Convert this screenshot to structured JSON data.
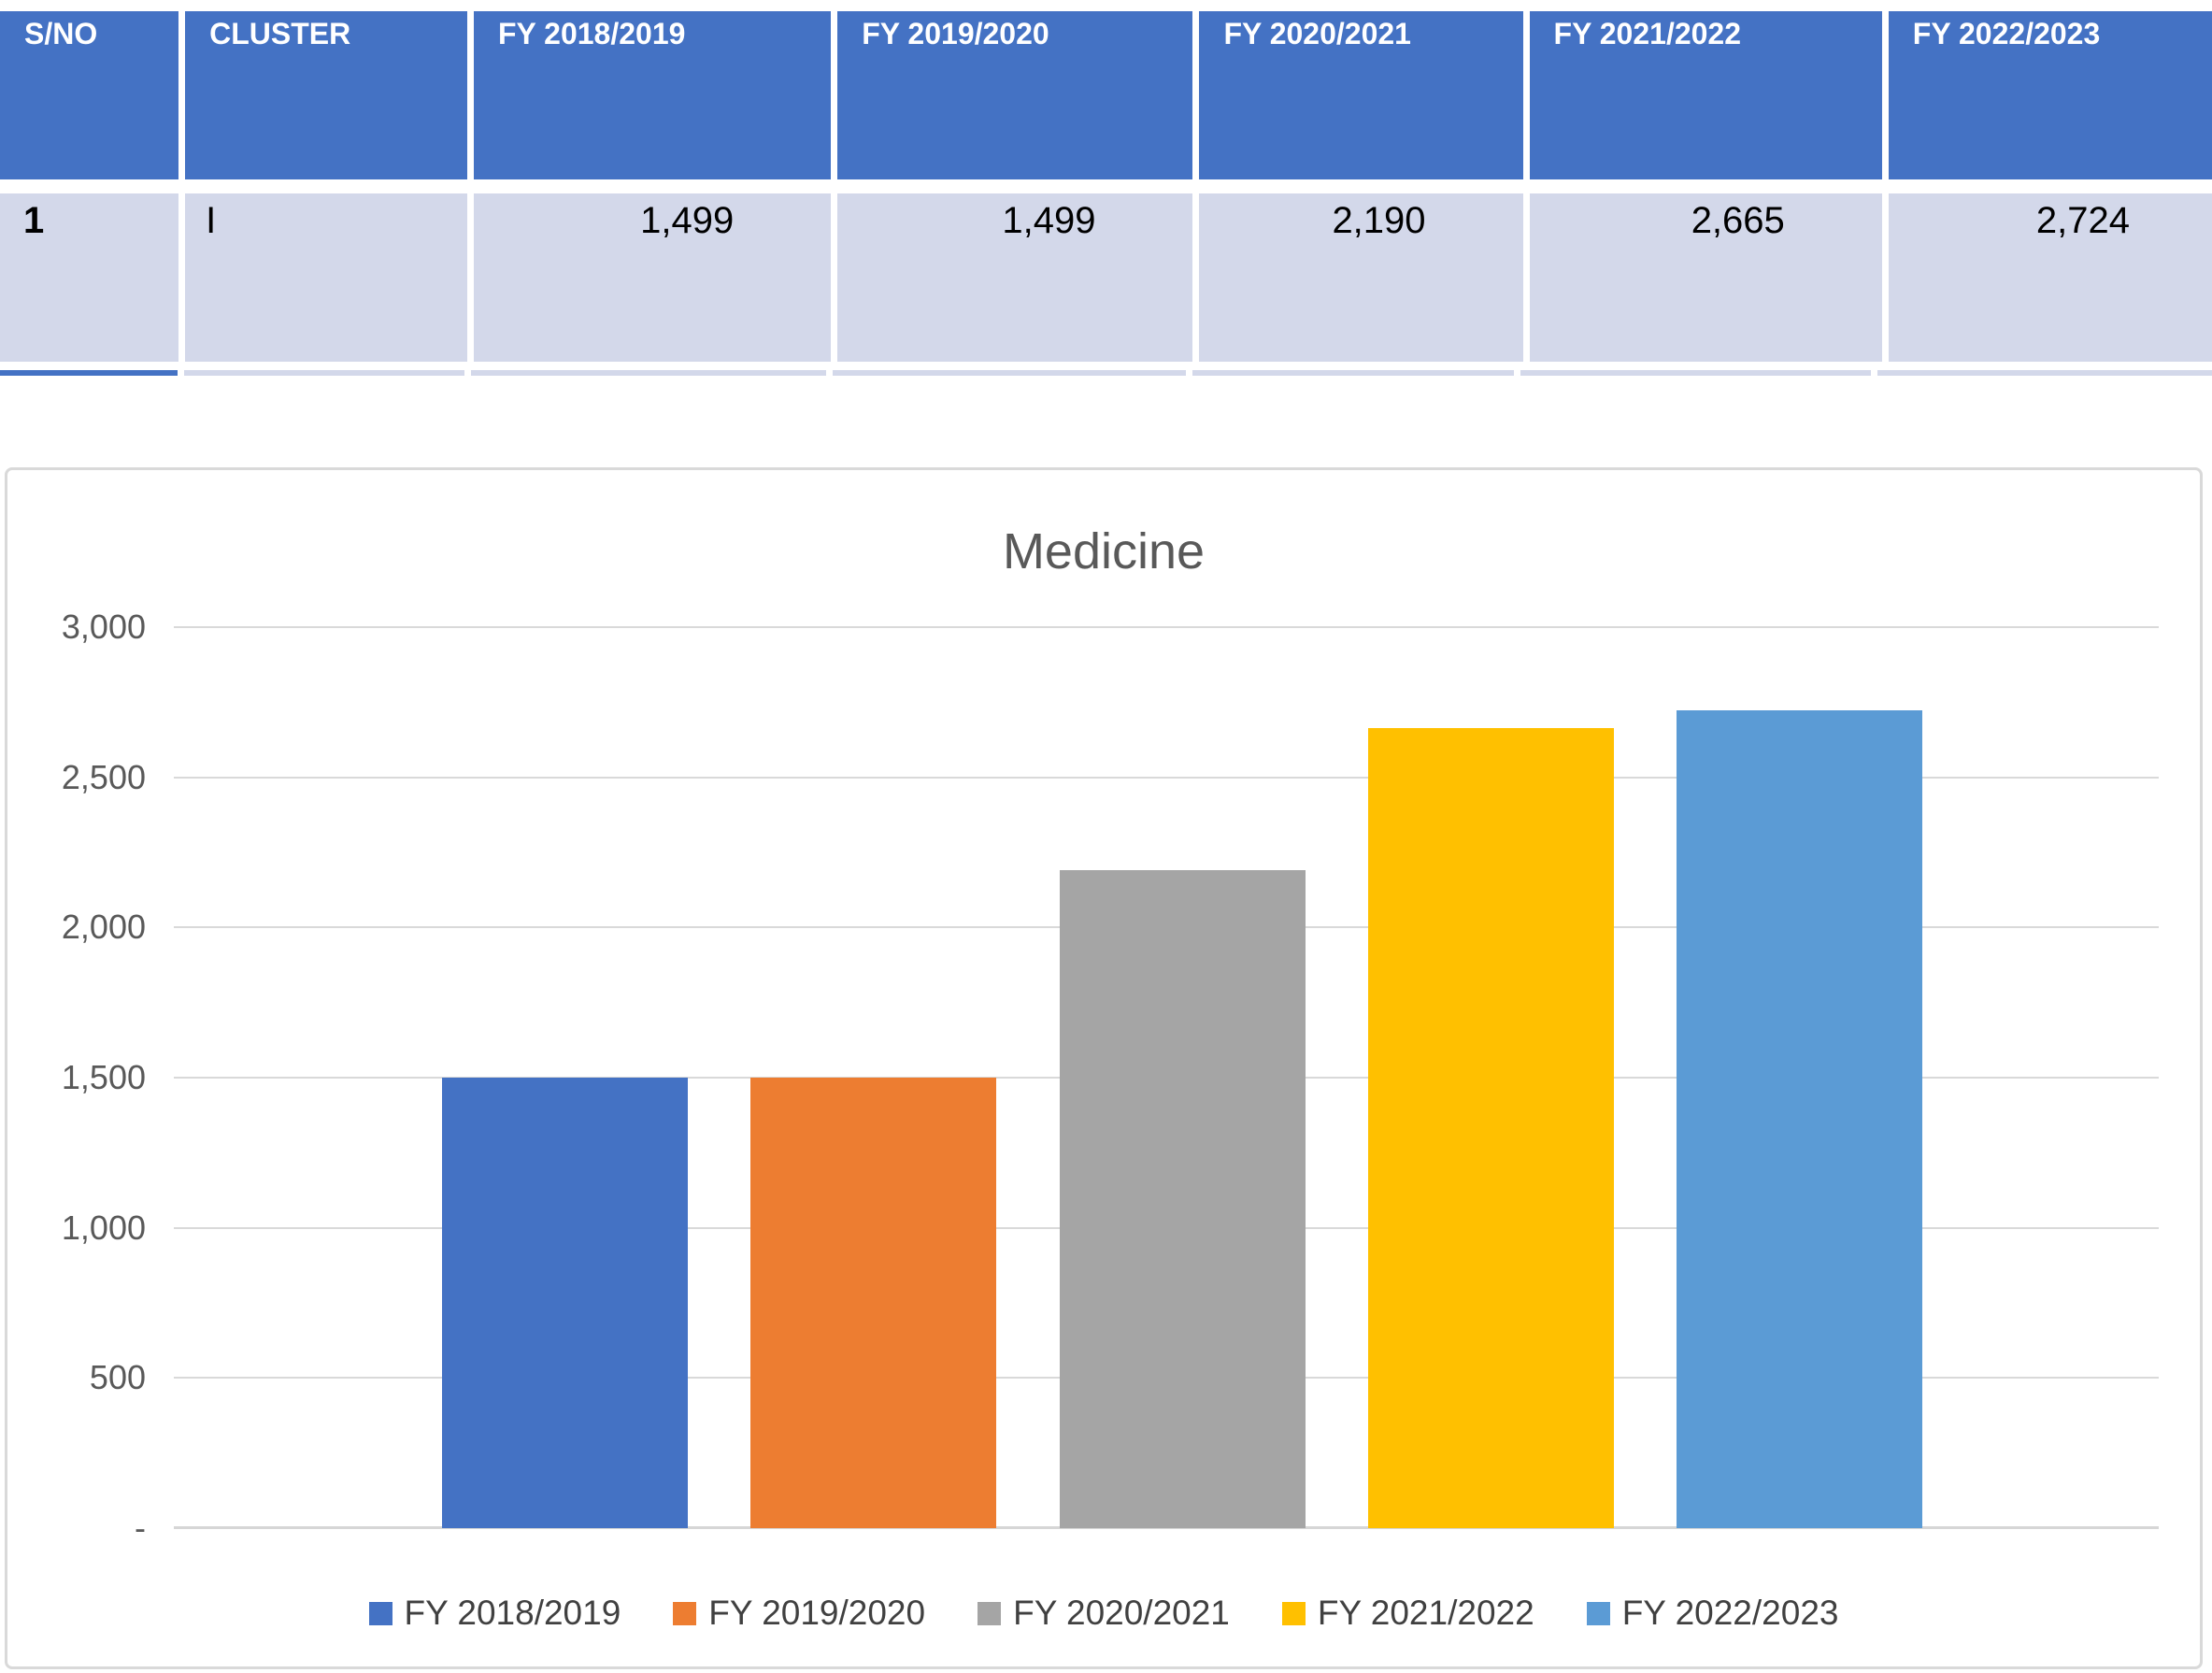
{
  "table": {
    "headers": [
      "S/NO",
      "CLUSTER",
      "FY 2018/2019",
      "FY 2019/2020",
      "FY 2020/2021",
      "FY 2021/2022",
      "FY 2022/2023"
    ],
    "rows": [
      {
        "sno": "1",
        "cluster": "I",
        "values": [
          "1,499",
          "1,499",
          "2,190",
          "2,665",
          "2,724"
        ]
      }
    ]
  },
  "chart_data": {
    "type": "bar",
    "title": "Medicine",
    "categories": [
      "FY 2018/2019",
      "FY 2019/2020",
      "FY 2020/2021",
      "FY 2021/2022",
      "FY 2022/2023"
    ],
    "values": [
      1499,
      1499,
      2190,
      2665,
      2724
    ],
    "series_colors": [
      "#4472C4",
      "#ED7D31",
      "#A5A5A5",
      "#FFC000",
      "#5B9BD5"
    ],
    "xlabel": "",
    "ylabel": "",
    "ylim": [
      0,
      3000
    ],
    "ytick_step": 500,
    "ytick_labels": [
      "-",
      "500",
      "1,000",
      "1,500",
      "2,000",
      "2,500",
      "3,000"
    ],
    "grid": true,
    "legend_position": "bottom",
    "legend": [
      "FY 2018/2019",
      "FY 2019/2020",
      "FY 2020/2021",
      "FY 2021/2022",
      "FY 2022/2023"
    ]
  },
  "colors": {
    "header_fill": "#4472C4",
    "band_fill": "#D3D8EA",
    "header_text": "#ffffff",
    "cell_text": "#000000",
    "gridline": "#D9D9D9",
    "axis_label": "#595959",
    "title_text": "#595959",
    "legend_text": "#404040",
    "card_border": "#D9D9D9"
  }
}
